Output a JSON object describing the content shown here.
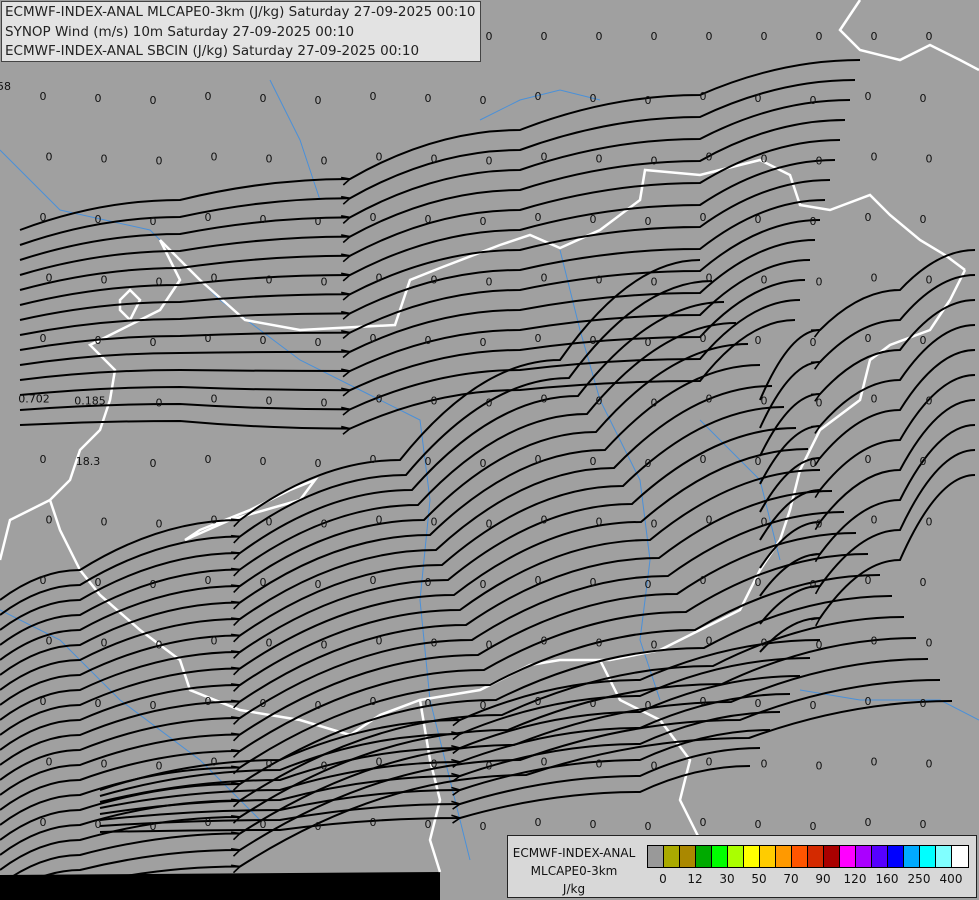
{
  "title_lines": [
    "ECMWF-INDEX-ANAL MLCAPE0-3km (J/kg) Saturday 27-09-2025 00:10",
    "SYNOP Wind (m/s) 10m Saturday 27-09-2025 00:10",
    "ECMWF-INDEX-ANAL SBCIN (J/kg) Saturday 27-09-2025 00:10"
  ],
  "legend": {
    "source": "ECMWF-INDEX-ANAL",
    "parameter": "MLCAPE0-3km",
    "unit": "J/kg",
    "colors": [
      "#999999",
      "#aaaa00",
      "#aa8800",
      "#00aa00",
      "#00ff00",
      "#aaff00",
      "#ffff00",
      "#ffcc00",
      "#ff9900",
      "#ff5500",
      "#d42a00",
      "#aa0000",
      "#ff00ff",
      "#aa00ff",
      "#5500ff",
      "#0000ff",
      "#00aaff",
      "#00ffff",
      "#80ffff",
      "#ffffff"
    ],
    "tick_labels": [
      "0",
      "12",
      "30",
      "50",
      "70",
      "90",
      "120",
      "160",
      "250",
      "400"
    ]
  },
  "map": {
    "background": "#a0a0a0",
    "border_color": "#ffffff",
    "river_color": "#4a90d9",
    "streamline_color": "#000000",
    "value_labels": [
      [
        "58",
        "0",
        "0",
        "0",
        "0",
        "0",
        "0",
        "0",
        "0",
        "0",
        "0",
        "0",
        "0",
        "0",
        "0",
        "0",
        "0"
      ],
      [
        "0",
        "0",
        "0",
        "0",
        "0",
        "0",
        "0",
        "0",
        "0",
        "0",
        "0",
        "0",
        "0",
        "0",
        "0",
        "0",
        "0"
      ],
      [
        "0",
        "0",
        "0",
        "0",
        "0",
        "0",
        "0",
        "0",
        "0",
        "0",
        "0",
        "0",
        "0",
        "0",
        "0",
        "0",
        "0"
      ],
      [
        "0",
        "0",
        "0",
        "0",
        "0",
        "0",
        "0",
        "0",
        "0",
        "0",
        "0",
        "0",
        "0",
        "0",
        "0",
        "0",
        "0"
      ],
      [
        "0",
        "0",
        "0",
        "0",
        "0",
        "0",
        "0",
        "0",
        "0",
        "0",
        "0",
        "0",
        "0",
        "0",
        "0",
        "0",
        "0"
      ],
      [
        "0",
        "0",
        "0",
        "0",
        "0",
        "0",
        "0",
        "0",
        "0",
        "0",
        "0",
        "0",
        "0",
        "0",
        "0",
        "0",
        "0"
      ],
      [
        "0.702",
        "0.185",
        "0",
        "0",
        "0",
        "0",
        "0",
        "0",
        "0",
        "0",
        "0",
        "0",
        "0",
        "0",
        "0",
        "0",
        "0"
      ],
      [
        "0",
        "18.3",
        "0",
        "0",
        "0",
        "0",
        "0",
        "0",
        "0",
        "0",
        "0",
        "0",
        "0",
        "0",
        "0",
        "0",
        "0"
      ],
      [
        "0",
        "0",
        "0",
        "0",
        "0",
        "0",
        "0",
        "0",
        "0",
        "0",
        "0",
        "0",
        "0",
        "0",
        "0",
        "0",
        "0"
      ],
      [
        "0",
        "0",
        "0",
        "0",
        "0",
        "0",
        "0",
        "0",
        "0",
        "0",
        "0",
        "0",
        "0",
        "0",
        "0",
        "0",
        "0"
      ],
      [
        "0",
        "0",
        "0",
        "0",
        "0",
        "0",
        "0",
        "0",
        "0",
        "0",
        "0",
        "0",
        "0",
        "0",
        "0",
        "0",
        "0"
      ],
      [
        "0",
        "0",
        "0",
        "0",
        "0",
        "0",
        "0",
        "0",
        "0",
        "0",
        "0",
        "0",
        "0",
        "0",
        "0",
        "0",
        "0"
      ],
      [
        "0",
        "0",
        "0",
        "0",
        "0",
        "0",
        "0",
        "0",
        "0",
        "0",
        "0",
        "0",
        "0",
        "0",
        "0",
        "0",
        "0"
      ],
      [
        "0",
        "0",
        "0",
        "0",
        "0",
        "0",
        "0",
        "0",
        "0",
        "0",
        "0",
        "0",
        "0",
        "0",
        "0",
        "0",
        "0"
      ]
    ]
  }
}
